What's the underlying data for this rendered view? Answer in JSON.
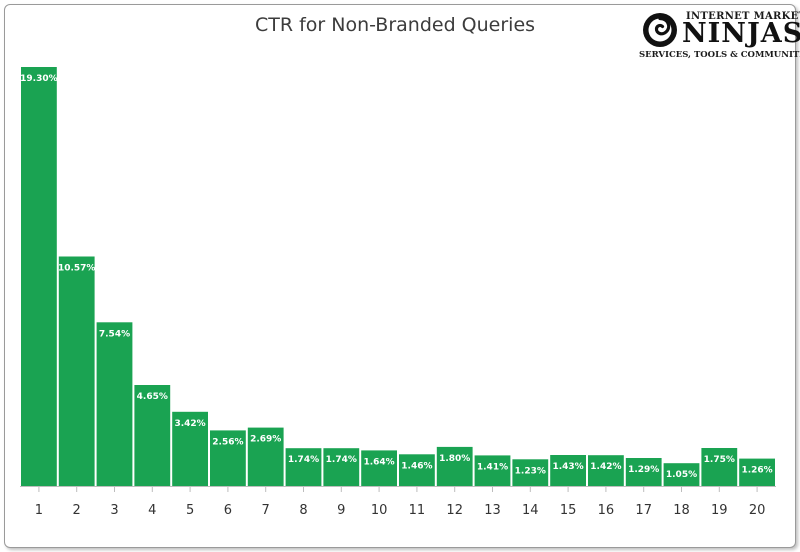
{
  "chart_data": {
    "type": "bar",
    "title": "CTR for Non-Branded Queries",
    "xlabel": "",
    "ylabel": "",
    "categories": [
      "1",
      "2",
      "3",
      "4",
      "5",
      "6",
      "7",
      "8",
      "9",
      "10",
      "11",
      "12",
      "13",
      "14",
      "15",
      "16",
      "17",
      "18",
      "19",
      "20"
    ],
    "values": [
      19.3,
      10.57,
      7.54,
      4.65,
      3.42,
      2.56,
      2.69,
      1.74,
      1.74,
      1.64,
      1.46,
      1.8,
      1.41,
      1.23,
      1.43,
      1.42,
      1.29,
      1.05,
      1.75,
      1.26
    ],
    "data_labels": [
      "19.30%",
      "10.57%",
      "7.54%",
      "4.65%",
      "3.42%",
      "2.56%",
      "2.69%",
      "1.74%",
      "1.74%",
      "1.64%",
      "1.46%",
      "1.80%",
      "1.41%",
      "1.23%",
      "1.43%",
      "1.42%",
      "1.29%",
      "1.05%",
      "1.75%",
      "1.26%"
    ],
    "ylim": [
      0,
      19.3
    ],
    "grid": false,
    "legend": "none",
    "bar_color": "#1aa352"
  },
  "logo": {
    "line1": "INTERNET MARKETING",
    "line2": "NINJAS",
    "line3": "SERVICES, TOOLS & COMMUNITIES"
  }
}
